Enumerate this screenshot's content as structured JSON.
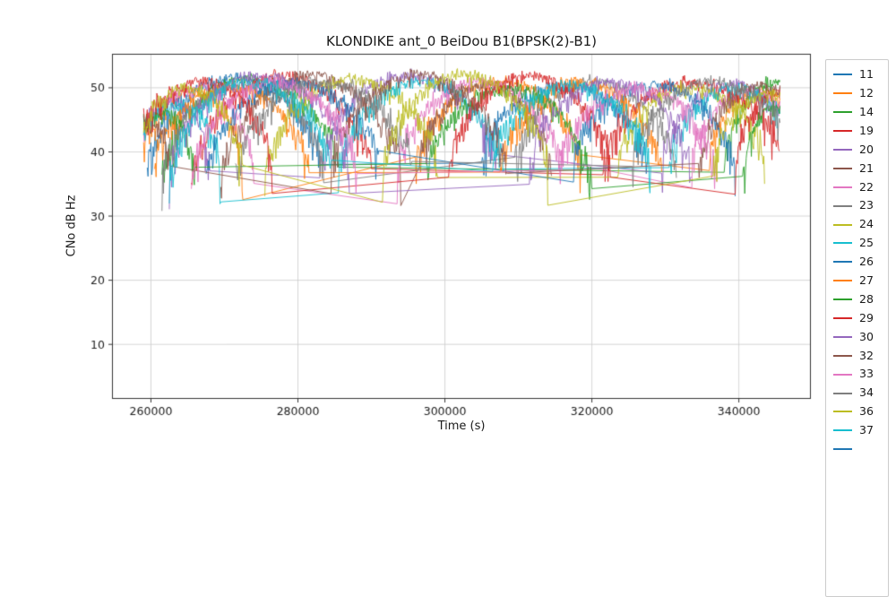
{
  "chart_data": {
    "type": "line",
    "title": "KLONDIKE ant_0 BeiDou B1(BPSK(2)-B1)",
    "xlabel": "Time (s)",
    "ylabel": "CNo dB Hz",
    "xlim": [
      254700,
      349800
    ],
    "ylim": [
      1.5,
      55.3
    ],
    "xticks": [
      {
        "value": 260000,
        "label": "260000"
      },
      {
        "value": 280000,
        "label": "280000"
      },
      {
        "value": 300000,
        "label": "300000"
      },
      {
        "value": 320000,
        "label": "320000"
      },
      {
        "value": 340000,
        "label": "340000"
      }
    ],
    "yticks": [
      {
        "value": 10,
        "label": "10"
      },
      {
        "value": 20,
        "label": "20"
      },
      {
        "value": 30,
        "label": "30"
      },
      {
        "value": 40,
        "label": "40"
      },
      {
        "value": 50,
        "label": "50"
      }
    ],
    "grid": true,
    "legend_position": "right-outside",
    "t_min": 259000,
    "t_max": 345600,
    "noise_base_db": 0.7,
    "y_clamp": [
      30.8,
      53.2
    ],
    "series": [
      {
        "name": "11",
        "color": "#1f77b4",
        "arcs": [
          {
            "t0": 259500,
            "t1": 283000,
            "peak": 51.5,
            "y0": 36,
            "y1": 38
          },
          {
            "t0": 305000,
            "t1": 327500,
            "peak": 50.5,
            "y0": 38,
            "y1": 37
          }
        ]
      },
      {
        "name": "12",
        "color": "#ff7f0e",
        "arcs": [
          {
            "t0": 259000,
            "t1": 272500,
            "peak": 49.5,
            "y0": 40,
            "y1": 37
          },
          {
            "t0": 296000,
            "t1": 318500,
            "peak": 51,
            "y0": 37,
            "y1": 38
          },
          {
            "t0": 336000,
            "t1": 349500,
            "peak": 49.5,
            "y0": 38,
            "y1": 37
          }
        ]
      },
      {
        "name": "14",
        "color": "#2ca02c",
        "arcs": [
          {
            "t0": 261500,
            "t1": 285500,
            "peak": 51.5,
            "y0": 35,
            "y1": 37
          },
          {
            "t0": 338000,
            "t1": 352000,
            "peak": 51,
            "y0": 37,
            "y1": 37
          }
        ]
      },
      {
        "name": "19",
        "color": "#d62728",
        "arcs": [
          {
            "t0": 265500,
            "t1": 290000,
            "peak": 52,
            "y0": 34,
            "y1": 37
          },
          {
            "t0": 321500,
            "t1": 345500,
            "peak": 51,
            "y0": 37,
            "y1": 40
          }
        ]
      },
      {
        "name": "20",
        "color": "#9467bd",
        "arcs": [
          {
            "t0": 258000,
            "t1": 268000,
            "peak": 48,
            "y0": 40,
            "y1": 36
          },
          {
            "t0": 283000,
            "t1": 307000,
            "peak": 52,
            "y0": 36,
            "y1": 38
          },
          {
            "t0": 329500,
            "t1": 349000,
            "peak": 50.5,
            "y0": 37,
            "y1": 37
          }
        ]
      },
      {
        "name": "21",
        "color": "#8c564b",
        "arcs": [
          {
            "t0": 269500,
            "t1": 294000,
            "peak": 52,
            "y0": 35,
            "y1": 37
          },
          {
            "t0": 296500,
            "t1": 314500,
            "peak": 50.5,
            "y0": 37,
            "y1": 36
          }
        ]
      },
      {
        "name": "22",
        "color": "#e377c2",
        "arcs": [
          {
            "t0": 258500,
            "t1": 274000,
            "peak": 50,
            "y0": 41,
            "y1": 36
          },
          {
            "t0": 293500,
            "t1": 316000,
            "peak": 51,
            "y0": 36,
            "y1": 37
          },
          {
            "t0": 333500,
            "t1": 349500,
            "peak": 49.5,
            "y0": 37,
            "y1": 37
          }
        ]
      },
      {
        "name": "23",
        "color": "#7f7f7f",
        "arcs": [
          {
            "t0": 261500,
            "t1": 283500,
            "peak": 50.5,
            "y0": 36,
            "y1": 37
          },
          {
            "t0": 309500,
            "t1": 331500,
            "peak": 51,
            "y0": 37,
            "y1": 36
          }
        ]
      },
      {
        "name": "24",
        "color": "#bcbd22",
        "arcs": [
          {
            "t0": 275500,
            "t1": 299000,
            "peak": 51.5,
            "y0": 35,
            "y1": 37
          },
          {
            "t0": 323500,
            "t1": 343500,
            "peak": 50,
            "y0": 37,
            "y1": 38
          }
        ]
      },
      {
        "name": "25",
        "color": "#17becf",
        "arcs": [
          {
            "t0": 258000,
            "t1": 269500,
            "peak": 47.5,
            "y0": 42,
            "y1": 36
          },
          {
            "t0": 285500,
            "t1": 308000,
            "peak": 51,
            "y0": 36,
            "y1": 37
          },
          {
            "t0": 330500,
            "t1": 348500,
            "peak": 50,
            "y0": 37,
            "y1": 37
          }
        ]
      },
      {
        "name": "26",
        "color": "#1f77b4",
        "arcs": [
          {
            "t0": 267500,
            "t1": 291000,
            "peak": 51,
            "y0": 35,
            "y1": 38
          },
          {
            "t0": 317500,
            "t1": 339500,
            "peak": 50.5,
            "y0": 38,
            "y1": 37
          }
        ]
      },
      {
        "name": "27",
        "color": "#ff7f0e",
        "arcs": [
          {
            "t0": 260500,
            "t1": 281500,
            "peak": 50,
            "y0": 37,
            "y1": 36
          },
          {
            "t0": 307500,
            "t1": 329500,
            "peak": 51,
            "y0": 36,
            "y1": 37
          }
        ]
      },
      {
        "name": "28",
        "color": "#2ca02c",
        "arcs": [
          {
            "t0": 258000,
            "t1": 266000,
            "peak": 46,
            "y0": 43,
            "y1": 36
          },
          {
            "t0": 297500,
            "t1": 320000,
            "peak": 50,
            "y0": 36,
            "y1": 33.5
          },
          {
            "t0": 340500,
            "t1": 349000,
            "peak": 47,
            "y0": 34,
            "y1": 37
          }
        ]
      },
      {
        "name": "29",
        "color": "#d62728",
        "arcs": [
          {
            "t0": 258000,
            "t1": 276500,
            "peak": 51,
            "y0": 41,
            "y1": 36
          },
          {
            "t0": 300500,
            "t1": 322500,
            "peak": 52,
            "y0": 36,
            "y1": 37
          },
          {
            "t0": 339500,
            "t1": 352000,
            "peak": 49.5,
            "y0": 37,
            "y1": 37
          }
        ]
      },
      {
        "name": "30",
        "color": "#9467bd",
        "arcs": [
          {
            "t0": 262500,
            "t1": 287000,
            "peak": 52,
            "y0": 35,
            "y1": 37
          },
          {
            "t0": 311500,
            "t1": 333500,
            "peak": 51,
            "y0": 37,
            "y1": 36
          }
        ]
      },
      {
        "name": "32",
        "color": "#8c564b",
        "arcs": [
          {
            "t0": 258000,
            "t1": 262500,
            "peak": 44,
            "y0": 43,
            "y1": 37
          },
          {
            "t0": 284500,
            "t1": 308500,
            "peak": 52,
            "y0": 37,
            "y1": 36
          },
          {
            "t0": 334500,
            "t1": 351000,
            "peak": 50.5,
            "y0": 36,
            "y1": 37
          }
        ]
      },
      {
        "name": "33",
        "color": "#e377c2",
        "arcs": [
          {
            "t0": 265500,
            "t1": 288000,
            "peak": 51,
            "y0": 34,
            "y1": 37
          },
          {
            "t0": 315500,
            "t1": 337000,
            "peak": 50,
            "y0": 37,
            "y1": 36
          }
        ]
      },
      {
        "name": "34",
        "color": "#7f7f7f",
        "arcs": [
          {
            "t0": 271500,
            "t1": 295500,
            "peak": 51,
            "y0": 36,
            "y1": 37
          },
          {
            "t0": 325500,
            "t1": 348000,
            "peak": 51,
            "y0": 37,
            "y1": 38
          }
        ]
      },
      {
        "name": "36",
        "color": "#bcbd22",
        "arcs": [
          {
            "t0": 258000,
            "t1": 272500,
            "peak": 50,
            "y0": 41,
            "y1": 36
          },
          {
            "t0": 291500,
            "t1": 314000,
            "peak": 52,
            "y0": 36,
            "y1": 37
          },
          {
            "t0": 336500,
            "t1": 351500,
            "peak": 49,
            "y0": 37,
            "y1": 37
          }
        ]
      },
      {
        "name": "37",
        "color": "#17becf",
        "arcs": [
          {
            "t0": 262500,
            "t1": 284500,
            "peak": 51,
            "y0": 35,
            "y1": 37
          },
          {
            "t0": 306500,
            "t1": 328000,
            "peak": 50.5,
            "y0": 37,
            "y1": 36
          }
        ]
      }
    ],
    "legend_partial_entry": {
      "label": "",
      "color": "#1f77b4"
    }
  }
}
